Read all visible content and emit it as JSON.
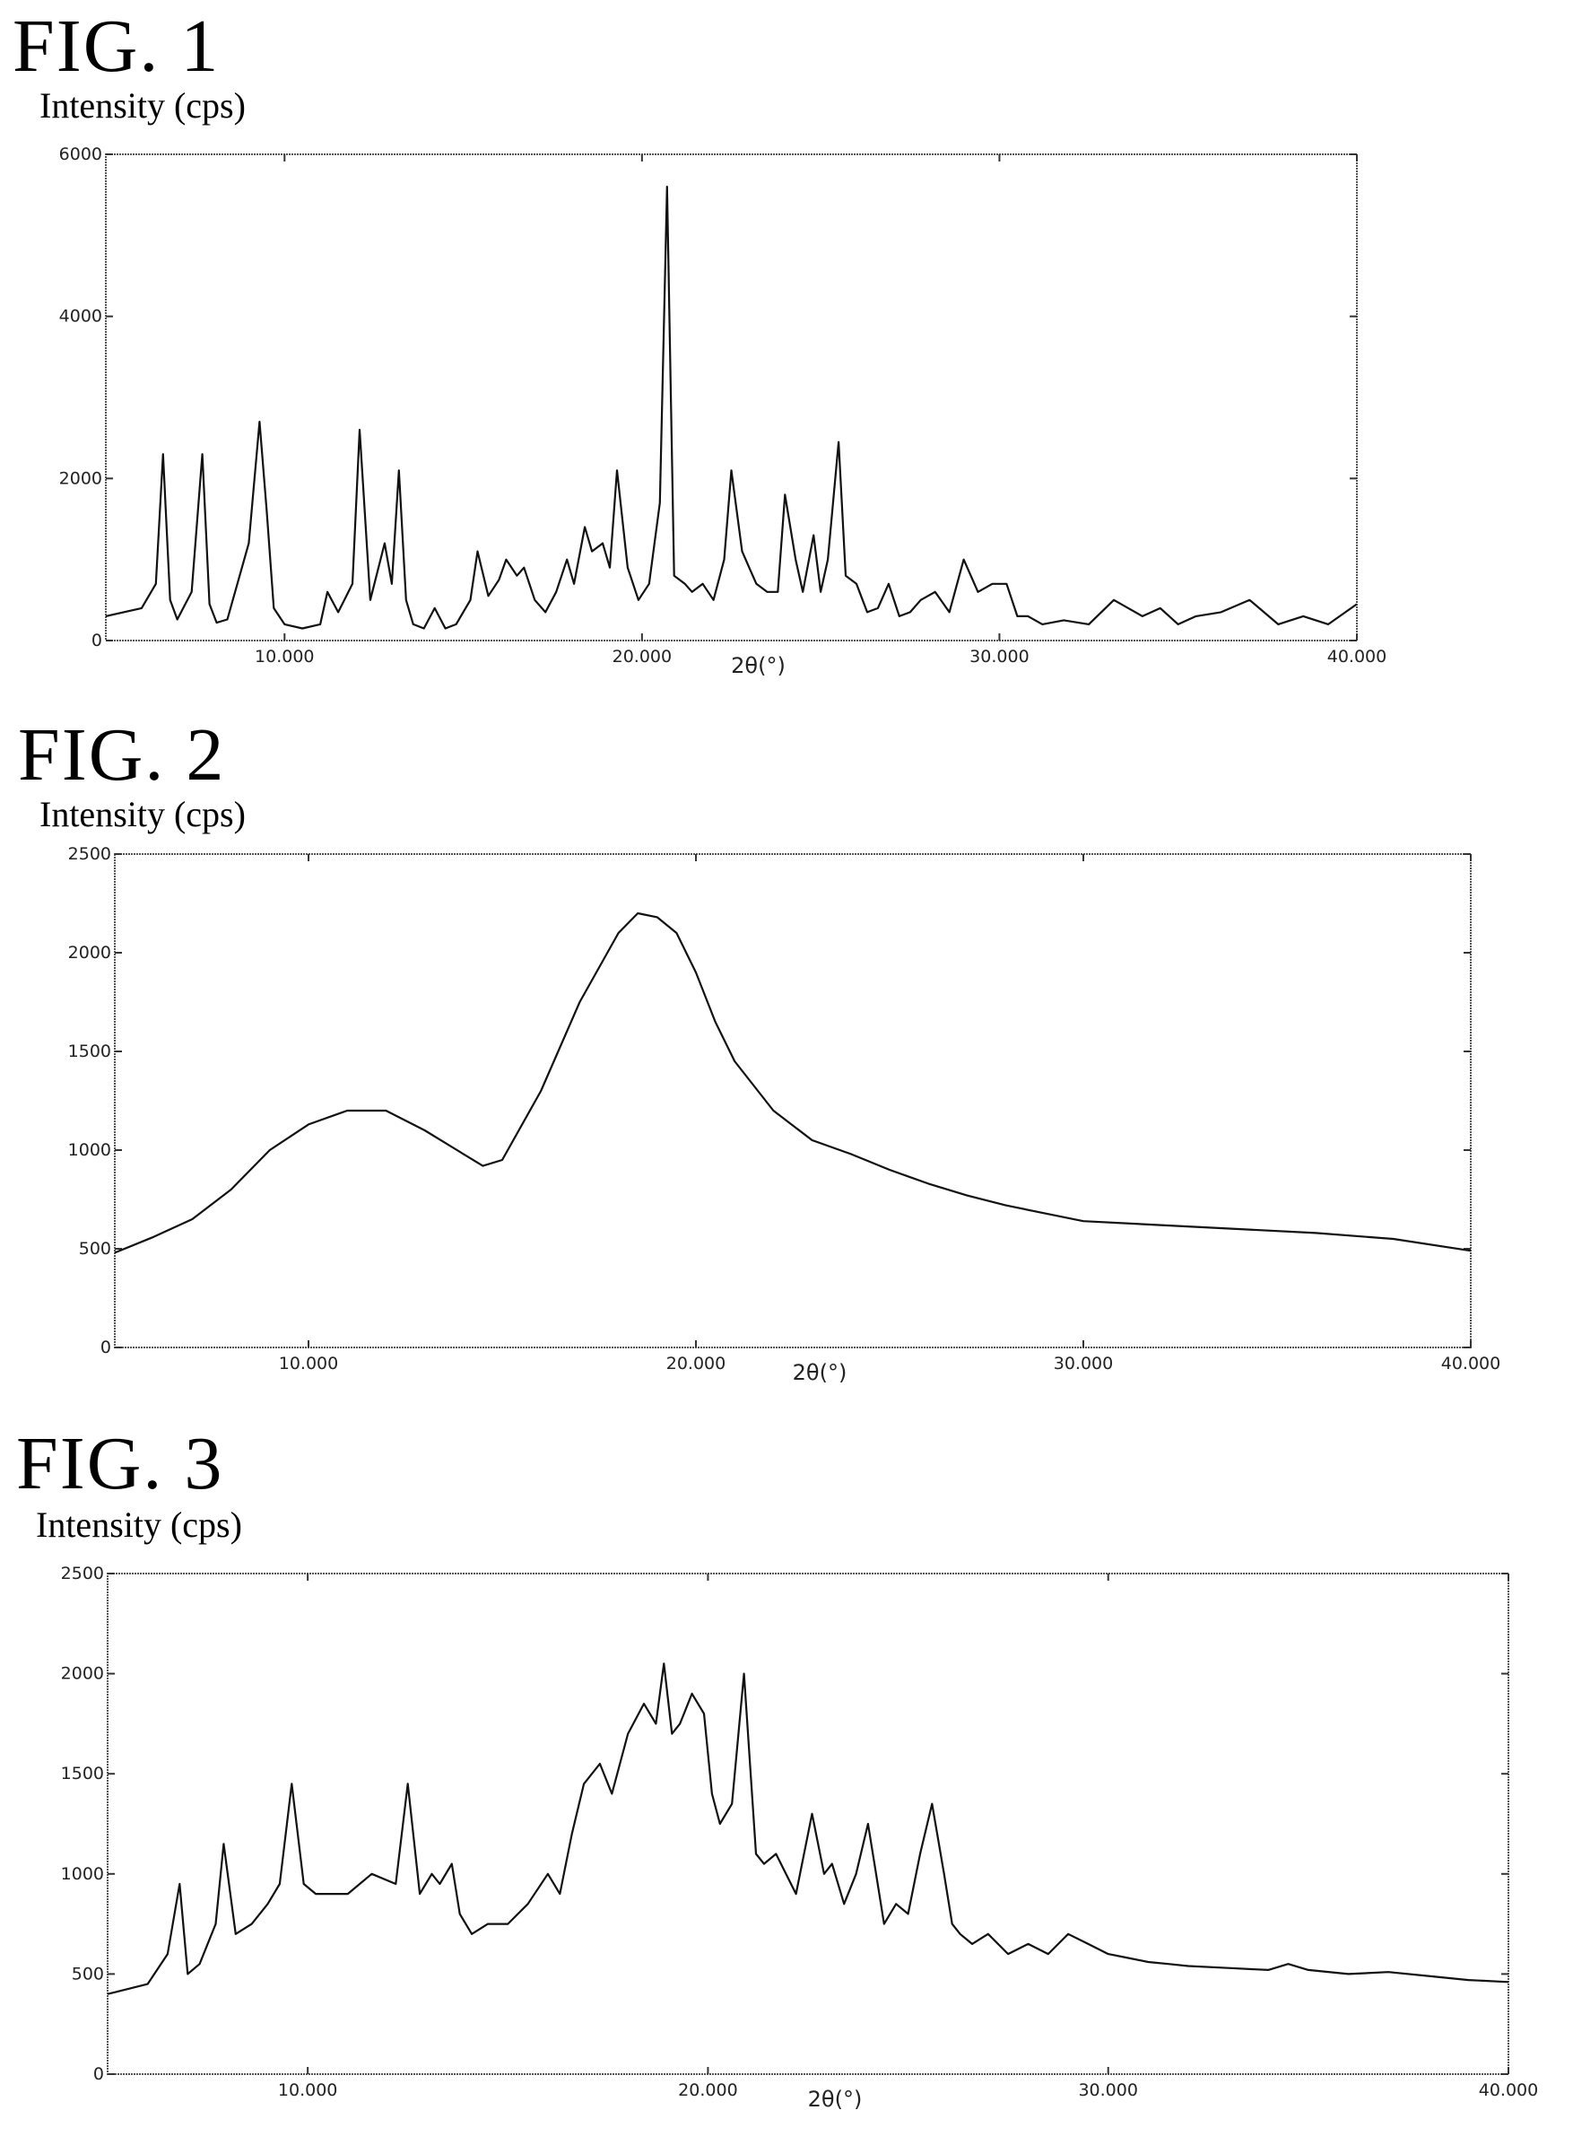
{
  "figures": [
    {
      "label": "FIG. 1",
      "ylabel": "Intensity (cps)"
    },
    {
      "label": "FIG. 2",
      "ylabel": "Intensity (cps)"
    },
    {
      "label": "FIG. 3",
      "ylabel": "Intensity (cps)"
    }
  ],
  "chart_data": [
    {
      "type": "line",
      "title": "FIG. 1",
      "xlabel": "2θ(°)",
      "ylabel": "Intensity (cps)",
      "xlim": [
        5,
        40
      ],
      "ylim": [
        0,
        6000
      ],
      "x_ticks": [
        10,
        20,
        30,
        40
      ],
      "x_tick_labels": [
        "10.000",
        "20.000",
        "30.000",
        "40.000"
      ],
      "y_ticks": [
        0,
        2000,
        4000,
        6000
      ],
      "y_tick_labels": [
        "0",
        "2000",
        "4000",
        "6000"
      ],
      "grid": false,
      "series": [
        {
          "x": [
            5.0,
            6.0,
            6.4,
            6.6,
            6.8,
            7.0,
            7.4,
            7.7,
            7.9,
            8.1,
            8.4,
            9.0,
            9.3,
            9.5,
            9.7,
            10.0,
            10.5,
            11.0,
            11.2,
            11.5,
            11.9,
            12.1,
            12.4,
            12.8,
            13.0,
            13.2,
            13.4,
            13.6,
            13.9,
            14.2,
            14.5,
            14.8,
            15.2,
            15.4,
            15.7,
            16.0,
            16.2,
            16.5,
            16.7,
            17.0,
            17.3,
            17.6,
            17.9,
            18.1,
            18.4,
            18.6,
            18.9,
            19.1,
            19.3,
            19.6,
            19.9,
            20.2,
            20.5,
            20.7,
            20.9,
            21.2,
            21.4,
            21.7,
            22.0,
            22.3,
            22.5,
            22.8,
            23.0,
            23.2,
            23.5,
            23.8,
            24.0,
            24.3,
            24.5,
            24.8,
            25.0,
            25.2,
            25.5,
            25.7,
            26.0,
            26.3,
            26.6,
            26.9,
            27.2,
            27.5,
            27.8,
            28.2,
            28.6,
            29.0,
            29.4,
            29.8,
            30.2,
            30.5,
            30.8,
            31.2,
            31.8,
            32.5,
            33.2,
            34.0,
            34.5,
            35.0,
            35.5,
            36.2,
            37.0,
            37.8,
            38.5,
            39.2,
            40.0
          ],
          "y": [
            300,
            400,
            700,
            2300,
            500,
            260,
            600,
            2300,
            450,
            220,
            260,
            1200,
            2700,
            1600,
            400,
            200,
            150,
            200,
            600,
            350,
            700,
            2600,
            500,
            1200,
            700,
            2100,
            500,
            200,
            150,
            400,
            150,
            200,
            500,
            1100,
            550,
            750,
            1000,
            800,
            900,
            500,
            350,
            600,
            1000,
            700,
            1400,
            1100,
            1200,
            900,
            2100,
            900,
            500,
            700,
            1700,
            5600,
            800,
            700,
            600,
            700,
            500,
            1000,
            2100,
            1100,
            900,
            700,
            600,
            600,
            1800,
            1000,
            600,
            1300,
            600,
            1000,
            2450,
            800,
            700,
            350,
            400,
            700,
            300,
            350,
            500,
            600,
            350,
            1000,
            600,
            700,
            700,
            300,
            300,
            200,
            250,
            200,
            500,
            300,
            400,
            200,
            300,
            350,
            500,
            200,
            300,
            200,
            450
          ]
        }
      ]
    },
    {
      "type": "line",
      "title": "FIG. 2",
      "xlabel": "2θ(°)",
      "ylabel": "Intensity (cps)",
      "xlim": [
        5,
        40
      ],
      "ylim": [
        0,
        2500
      ],
      "x_ticks": [
        10,
        20,
        30,
        40
      ],
      "x_tick_labels": [
        "10.000",
        "20.000",
        "30.000",
        "40.000"
      ],
      "y_ticks": [
        0,
        500,
        1000,
        1500,
        2000,
        2500
      ],
      "y_tick_labels": [
        "0",
        "500",
        "1000",
        "1500",
        "2000",
        "2500"
      ],
      "grid": false,
      "series": [
        {
          "x": [
            5.0,
            6.0,
            7.0,
            8.0,
            9.0,
            10.0,
            11.0,
            12.0,
            13.0,
            14.0,
            14.5,
            15.0,
            16.0,
            17.0,
            18.0,
            18.5,
            19.0,
            19.5,
            20.0,
            20.5,
            21.0,
            22.0,
            23.0,
            24.0,
            25.0,
            26.0,
            27.0,
            28.0,
            29.0,
            30.0,
            32.0,
            34.0,
            36.0,
            38.0,
            40.0
          ],
          "y": [
            480,
            560,
            650,
            800,
            1000,
            1130,
            1200,
            1200,
            1100,
            980,
            920,
            950,
            1300,
            1750,
            2100,
            2200,
            2180,
            2100,
            1900,
            1650,
            1450,
            1200,
            1050,
            980,
            900,
            830,
            770,
            720,
            680,
            640,
            620,
            600,
            580,
            550,
            490
          ]
        }
      ]
    },
    {
      "type": "line",
      "title": "FIG. 3",
      "xlabel": "2θ(°)",
      "ylabel": "Intensity (cps)",
      "xlim": [
        5,
        40
      ],
      "ylim": [
        0,
        2500
      ],
      "x_ticks": [
        10,
        20,
        30,
        40
      ],
      "x_tick_labels": [
        "10.000",
        "20.000",
        "30.000",
        "40.000"
      ],
      "y_ticks": [
        0,
        500,
        1000,
        1500,
        2000,
        2500
      ],
      "y_tick_labels": [
        "0",
        "500",
        "1000",
        "1500",
        "2000",
        "2500"
      ],
      "grid": false,
      "series": [
        {
          "x": [
            5.0,
            6.0,
            6.5,
            6.8,
            7.0,
            7.3,
            7.7,
            7.9,
            8.2,
            8.6,
            9.0,
            9.3,
            9.6,
            9.9,
            10.2,
            11.0,
            11.6,
            12.2,
            12.5,
            12.8,
            13.1,
            13.3,
            13.6,
            13.8,
            14.1,
            14.5,
            15.0,
            15.5,
            16.0,
            16.3,
            16.6,
            16.9,
            17.3,
            17.6,
            18.0,
            18.4,
            18.7,
            18.9,
            19.1,
            19.3,
            19.6,
            19.9,
            20.1,
            20.3,
            20.6,
            20.9,
            21.2,
            21.4,
            21.7,
            22.2,
            22.6,
            22.9,
            23.1,
            23.4,
            23.7,
            24.0,
            24.2,
            24.4,
            24.7,
            25.0,
            25.3,
            25.6,
            25.9,
            26.1,
            26.3,
            26.6,
            27.0,
            27.5,
            28.0,
            28.5,
            29.0,
            29.5,
            30.0,
            30.5,
            31.0,
            31.5,
            32.0,
            33.0,
            34.0,
            34.5,
            35.0,
            36.0,
            37.0,
            38.0,
            39.0,
            40.0
          ],
          "y": [
            400,
            450,
            600,
            950,
            500,
            550,
            750,
            1150,
            700,
            750,
            850,
            950,
            1450,
            950,
            900,
            900,
            1000,
            950,
            1450,
            900,
            1000,
            950,
            1050,
            800,
            700,
            750,
            750,
            850,
            1000,
            900,
            1200,
            1450,
            1550,
            1400,
            1700,
            1850,
            1750,
            2050,
            1700,
            1750,
            1900,
            1800,
            1400,
            1250,
            1350,
            2000,
            1100,
            1050,
            1100,
            900,
            1300,
            1000,
            1050,
            850,
            1000,
            1250,
            1000,
            750,
            850,
            800,
            1100,
            1350,
            1000,
            750,
            700,
            650,
            700,
            600,
            650,
            600,
            700,
            650,
            600,
            580,
            560,
            550,
            540,
            530,
            520,
            550,
            520,
            500,
            510,
            490,
            470,
            460
          ]
        }
      ]
    }
  ]
}
